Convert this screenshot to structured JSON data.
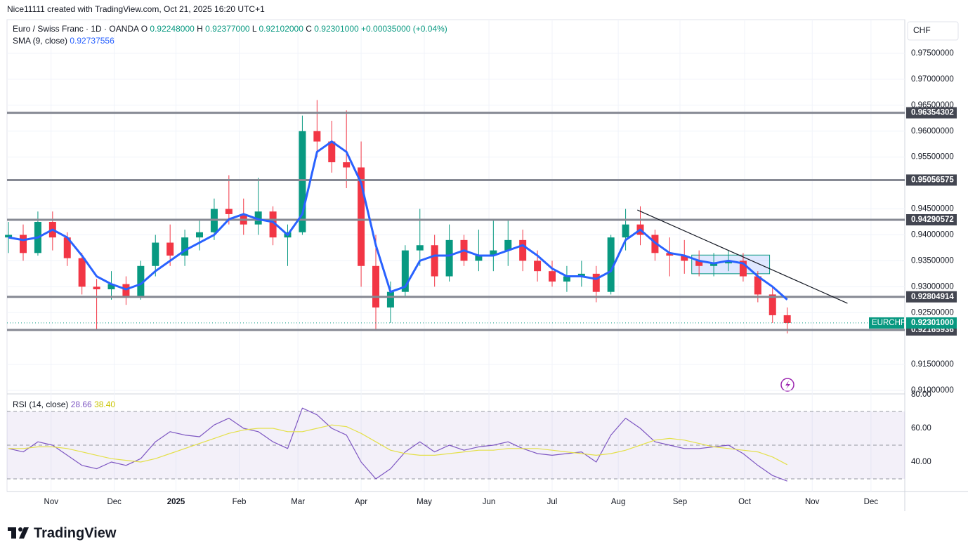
{
  "header": {
    "credit": "Nice11111 created with TradingView.com, Oct 21, 2025 16:20 UTC+1",
    "brand": "TradingView"
  },
  "chart_data": [
    {
      "type": "candlestick",
      "title": "Euro / Swiss Franc · 1D · OANDA",
      "currency": "CHF",
      "symbol": "EURCHF",
      "ohlc": [
        {
          "name": "O",
          "value": 0.92248,
          "label": "0.92248000"
        },
        {
          "name": "H",
          "value": 0.92377,
          "label": "0.92377000"
        },
        {
          "name": "L",
          "value": 0.92102,
          "label": "0.92102000"
        },
        {
          "name": "C",
          "value": 0.92301,
          "label": "0.92301000"
        }
      ],
      "change": "+0.00035000 (+0.04%)",
      "up_color": "#089981",
      "down_color": "#f23645",
      "candles": [
        [
          0.9395,
          0.9425,
          0.9365,
          0.94
        ],
        [
          0.94,
          0.942,
          0.935,
          0.9365
        ],
        [
          0.9365,
          0.9445,
          0.936,
          0.9425
        ],
        [
          0.9425,
          0.9445,
          0.937,
          0.9395
        ],
        [
          0.9395,
          0.9405,
          0.934,
          0.9355
        ],
        [
          0.9355,
          0.9365,
          0.9285,
          0.93
        ],
        [
          0.93,
          0.9315,
          0.9216,
          0.9295
        ],
        [
          0.9295,
          0.933,
          0.9275,
          0.9305
        ],
        [
          0.9305,
          0.932,
          0.9265,
          0.928
        ],
        [
          0.928,
          0.935,
          0.9275,
          0.934
        ],
        [
          0.934,
          0.94,
          0.932,
          0.9385
        ],
        [
          0.9385,
          0.942,
          0.934,
          0.936
        ],
        [
          0.936,
          0.941,
          0.934,
          0.9395
        ],
        [
          0.9395,
          0.943,
          0.937,
          0.9405
        ],
        [
          0.9405,
          0.947,
          0.939,
          0.945
        ],
        [
          0.945,
          0.9515,
          0.942,
          0.944
        ],
        [
          0.944,
          0.947,
          0.94,
          0.942
        ],
        [
          0.942,
          0.951,
          0.94,
          0.9445
        ],
        [
          0.9445,
          0.9455,
          0.938,
          0.9395
        ],
        [
          0.9395,
          0.942,
          0.934,
          0.9405
        ],
        [
          0.9405,
          0.963,
          0.94,
          0.96
        ],
        [
          0.96,
          0.966,
          0.955,
          0.958
        ],
        [
          0.958,
          0.962,
          0.952,
          0.954
        ],
        [
          0.954,
          0.964,
          0.949,
          0.953
        ],
        [
          0.953,
          0.958,
          0.93,
          0.934
        ],
        [
          0.934,
          0.94,
          0.9215,
          0.926
        ],
        [
          0.926,
          0.931,
          0.923,
          0.929
        ],
        [
          0.929,
          0.938,
          0.928,
          0.937
        ],
        [
          0.937,
          0.945,
          0.934,
          0.938
        ],
        [
          0.938,
          0.94,
          0.93,
          0.932
        ],
        [
          0.932,
          0.942,
          0.931,
          0.939
        ],
        [
          0.939,
          0.94,
          0.934,
          0.935
        ],
        [
          0.935,
          0.941,
          0.933,
          0.936
        ],
        [
          0.936,
          0.943,
          0.933,
          0.937
        ],
        [
          0.937,
          0.943,
          0.934,
          0.939
        ],
        [
          0.939,
          0.941,
          0.933,
          0.935
        ],
        [
          0.935,
          0.937,
          0.931,
          0.933
        ],
        [
          0.933,
          0.935,
          0.93,
          0.931
        ],
        [
          0.931,
          0.934,
          0.929,
          0.932
        ],
        [
          0.932,
          0.935,
          0.93,
          0.9325
        ],
        [
          0.9325,
          0.934,
          0.927,
          0.929
        ],
        [
          0.929,
          0.94,
          0.9285,
          0.9395
        ],
        [
          0.9395,
          0.945,
          0.937,
          0.942
        ],
        [
          0.942,
          0.9455,
          0.938,
          0.94
        ],
        [
          0.94,
          0.941,
          0.935,
          0.9365
        ],
        [
          0.9365,
          0.9395,
          0.932,
          0.936
        ],
        [
          0.936,
          0.939,
          0.9325,
          0.935
        ],
        [
          0.935,
          0.937,
          0.932,
          0.934
        ],
        [
          0.934,
          0.9365,
          0.932,
          0.9345
        ],
        [
          0.9345,
          0.937,
          0.933,
          0.935
        ],
        [
          0.935,
          0.9365,
          0.931,
          0.932
        ],
        [
          0.932,
          0.933,
          0.927,
          0.9285
        ],
        [
          0.9285,
          0.93,
          0.923,
          0.9245
        ],
        [
          0.9245,
          0.926,
          0.921,
          0.923
        ]
      ],
      "sma": {
        "name": "SMA (9, close)",
        "value": 0.92737556,
        "label": "0.92737556",
        "color": "#2962ff",
        "values": [
          0.9395,
          0.939,
          0.9395,
          0.941,
          0.9395,
          0.936,
          0.932,
          0.9305,
          0.9295,
          0.9305,
          0.933,
          0.935,
          0.937,
          0.9385,
          0.94,
          0.943,
          0.944,
          0.943,
          0.9425,
          0.94,
          0.944,
          0.956,
          0.958,
          0.956,
          0.95,
          0.938,
          0.929,
          0.93,
          0.935,
          0.936,
          0.936,
          0.937,
          0.936,
          0.936,
          0.937,
          0.938,
          0.936,
          0.9335,
          0.932,
          0.932,
          0.9315,
          0.933,
          0.939,
          0.941,
          0.9385,
          0.9365,
          0.936,
          0.935,
          0.9345,
          0.935,
          0.9345,
          0.932,
          0.93,
          0.9275
        ]
      },
      "levels": [
        0.96354302,
        0.95056575,
        0.94290572,
        0.92804914,
        0.92165936
      ],
      "last": {
        "value": 0.92301,
        "label": "0.92301000"
      },
      "trendline": {
        "x": [
          42.8,
          57.1
        ],
        "y": [
          0.9448,
          0.9268
        ]
      },
      "range_box": {
        "x": [
          46.5,
          51.8
        ],
        "y": [
          0.9325,
          0.9361
        ]
      },
      "ylim": [
        0.90946,
        0.9815
      ],
      "yticks": [
        {
          "value": 0.975,
          "label": "0.97500000"
        },
        {
          "value": 0.97,
          "label": "0.97000000"
        },
        {
          "value": 0.965,
          "label": "0.96500000"
        },
        {
          "value": 0.96,
          "label": "0.96000000"
        },
        {
          "value": 0.955,
          "label": "0.95500000"
        },
        {
          "value": 0.945,
          "label": "0.94500000"
        },
        {
          "value": 0.94,
          "label": "0.94000000"
        },
        {
          "value": 0.935,
          "label": "0.93500000"
        },
        {
          "value": 0.93,
          "label": "0.93000000"
        },
        {
          "value": 0.925,
          "label": "0.92500000"
        },
        {
          "value": 0.915,
          "label": "0.91500000"
        },
        {
          "value": 0.91,
          "label": "0.91000000"
        }
      ],
      "xlim": [
        -0.1,
        61
      ],
      "xticks": [
        {
          "value": 2.9,
          "label": "Nov"
        },
        {
          "value": 7.2,
          "label": "Dec"
        },
        {
          "value": 11.4,
          "label": "2025"
        },
        {
          "value": 15.7,
          "label": "Feb"
        },
        {
          "value": 19.7,
          "label": "Mar"
        },
        {
          "value": 24,
          "label": "Apr"
        },
        {
          "value": 28.3,
          "label": "May"
        },
        {
          "value": 32.7,
          "label": "Jun"
        },
        {
          "value": 37,
          "label": "Jul"
        },
        {
          "value": 41.5,
          "label": "Aug"
        },
        {
          "value": 45.7,
          "label": "Sep"
        },
        {
          "value": 50.1,
          "label": "Oct"
        },
        {
          "value": 54.7,
          "label": "Nov"
        },
        {
          "value": 58.7,
          "label": "Dec"
        }
      ],
      "grid": true
    },
    {
      "type": "line",
      "title": "RSI (14, close)",
      "series": [
        {
          "name": "RSI",
          "label": "28.66",
          "color": "#7e57c2",
          "values": [
            48,
            46,
            52,
            50,
            44,
            38,
            36,
            40,
            38,
            42,
            52,
            58,
            56,
            55,
            62,
            66,
            60,
            58,
            52,
            48,
            72,
            68,
            60,
            56,
            40,
            30,
            36,
            46,
            52,
            46,
            50,
            47,
            49,
            50,
            52,
            48,
            45,
            44,
            45,
            46,
            40,
            56,
            66,
            60,
            52,
            50,
            48,
            48,
            49,
            50,
            45,
            38,
            32,
            28.66
          ]
        },
        {
          "name": "RSI MA",
          "label": "38.40",
          "color": "#e4e04a",
          "values": [
            48,
            48,
            49,
            49,
            48,
            46,
            44,
            42,
            41,
            40,
            42,
            45,
            48,
            51,
            54,
            57,
            59,
            60,
            60,
            58,
            58,
            60,
            62,
            61,
            57,
            52,
            47,
            45,
            44,
            44,
            45,
            46,
            47,
            47,
            48,
            48,
            48,
            47,
            46,
            45,
            44,
            45,
            47,
            50,
            53,
            54,
            53,
            51,
            49,
            48,
            47,
            46,
            43,
            38.4
          ]
        }
      ],
      "hlines": [
        70,
        50,
        30
      ],
      "ylim": [
        22.5,
        80
      ],
      "yticks": [
        {
          "value": 80,
          "label": "80.00"
        },
        {
          "value": 60,
          "label": "60.00"
        },
        {
          "value": 40,
          "label": "40.00"
        }
      ]
    }
  ]
}
